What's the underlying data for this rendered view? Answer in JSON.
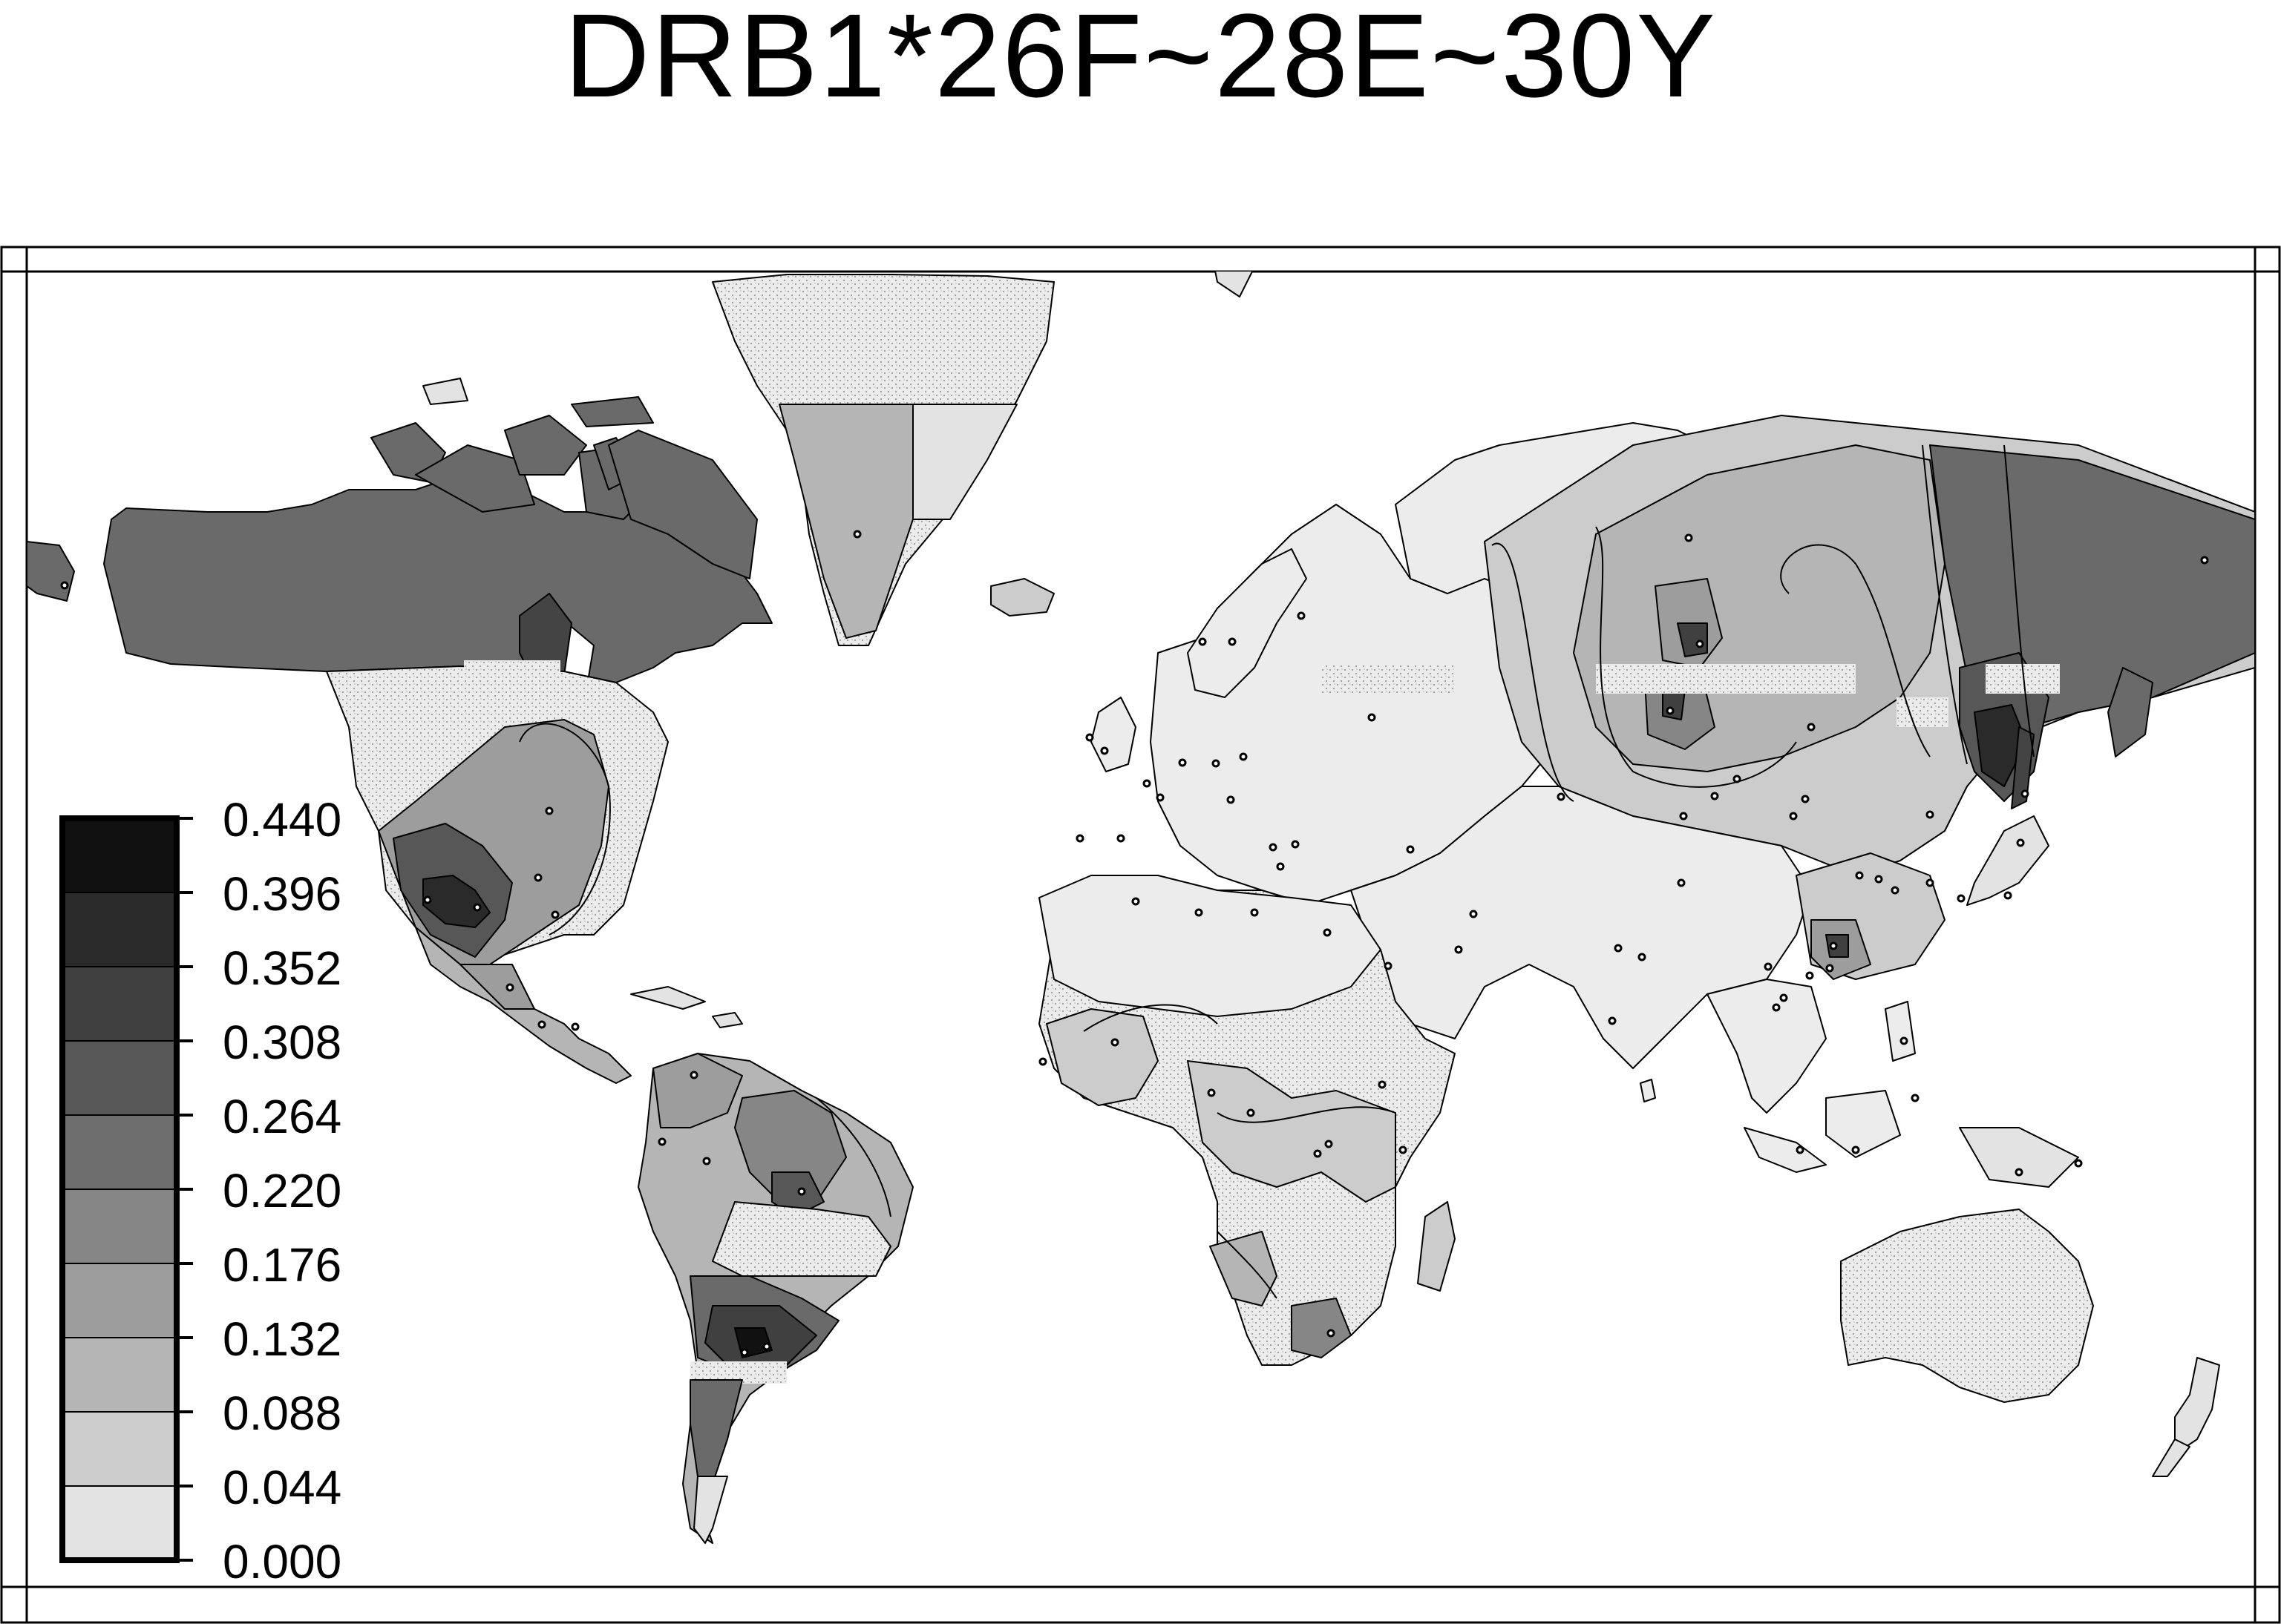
{
  "title": "DRB1*26F~28E~30Y",
  "legend": {
    "ticks": [
      "0.440",
      "0.396",
      "0.352",
      "0.308",
      "0.264",
      "0.220",
      "0.176",
      "0.132",
      "0.088",
      "0.044",
      "0.000"
    ],
    "shades": [
      "#111111",
      "#2a2a2a",
      "#404040",
      "#575757",
      "#6e6e6e",
      "#868686",
      "#9d9d9d",
      "#b5b5b5",
      "#cccccc",
      "#e3e3e3"
    ]
  },
  "colors": {
    "water": "#ffffff",
    "no_data": "#e6e6e6",
    "outline": "#000000"
  }
}
